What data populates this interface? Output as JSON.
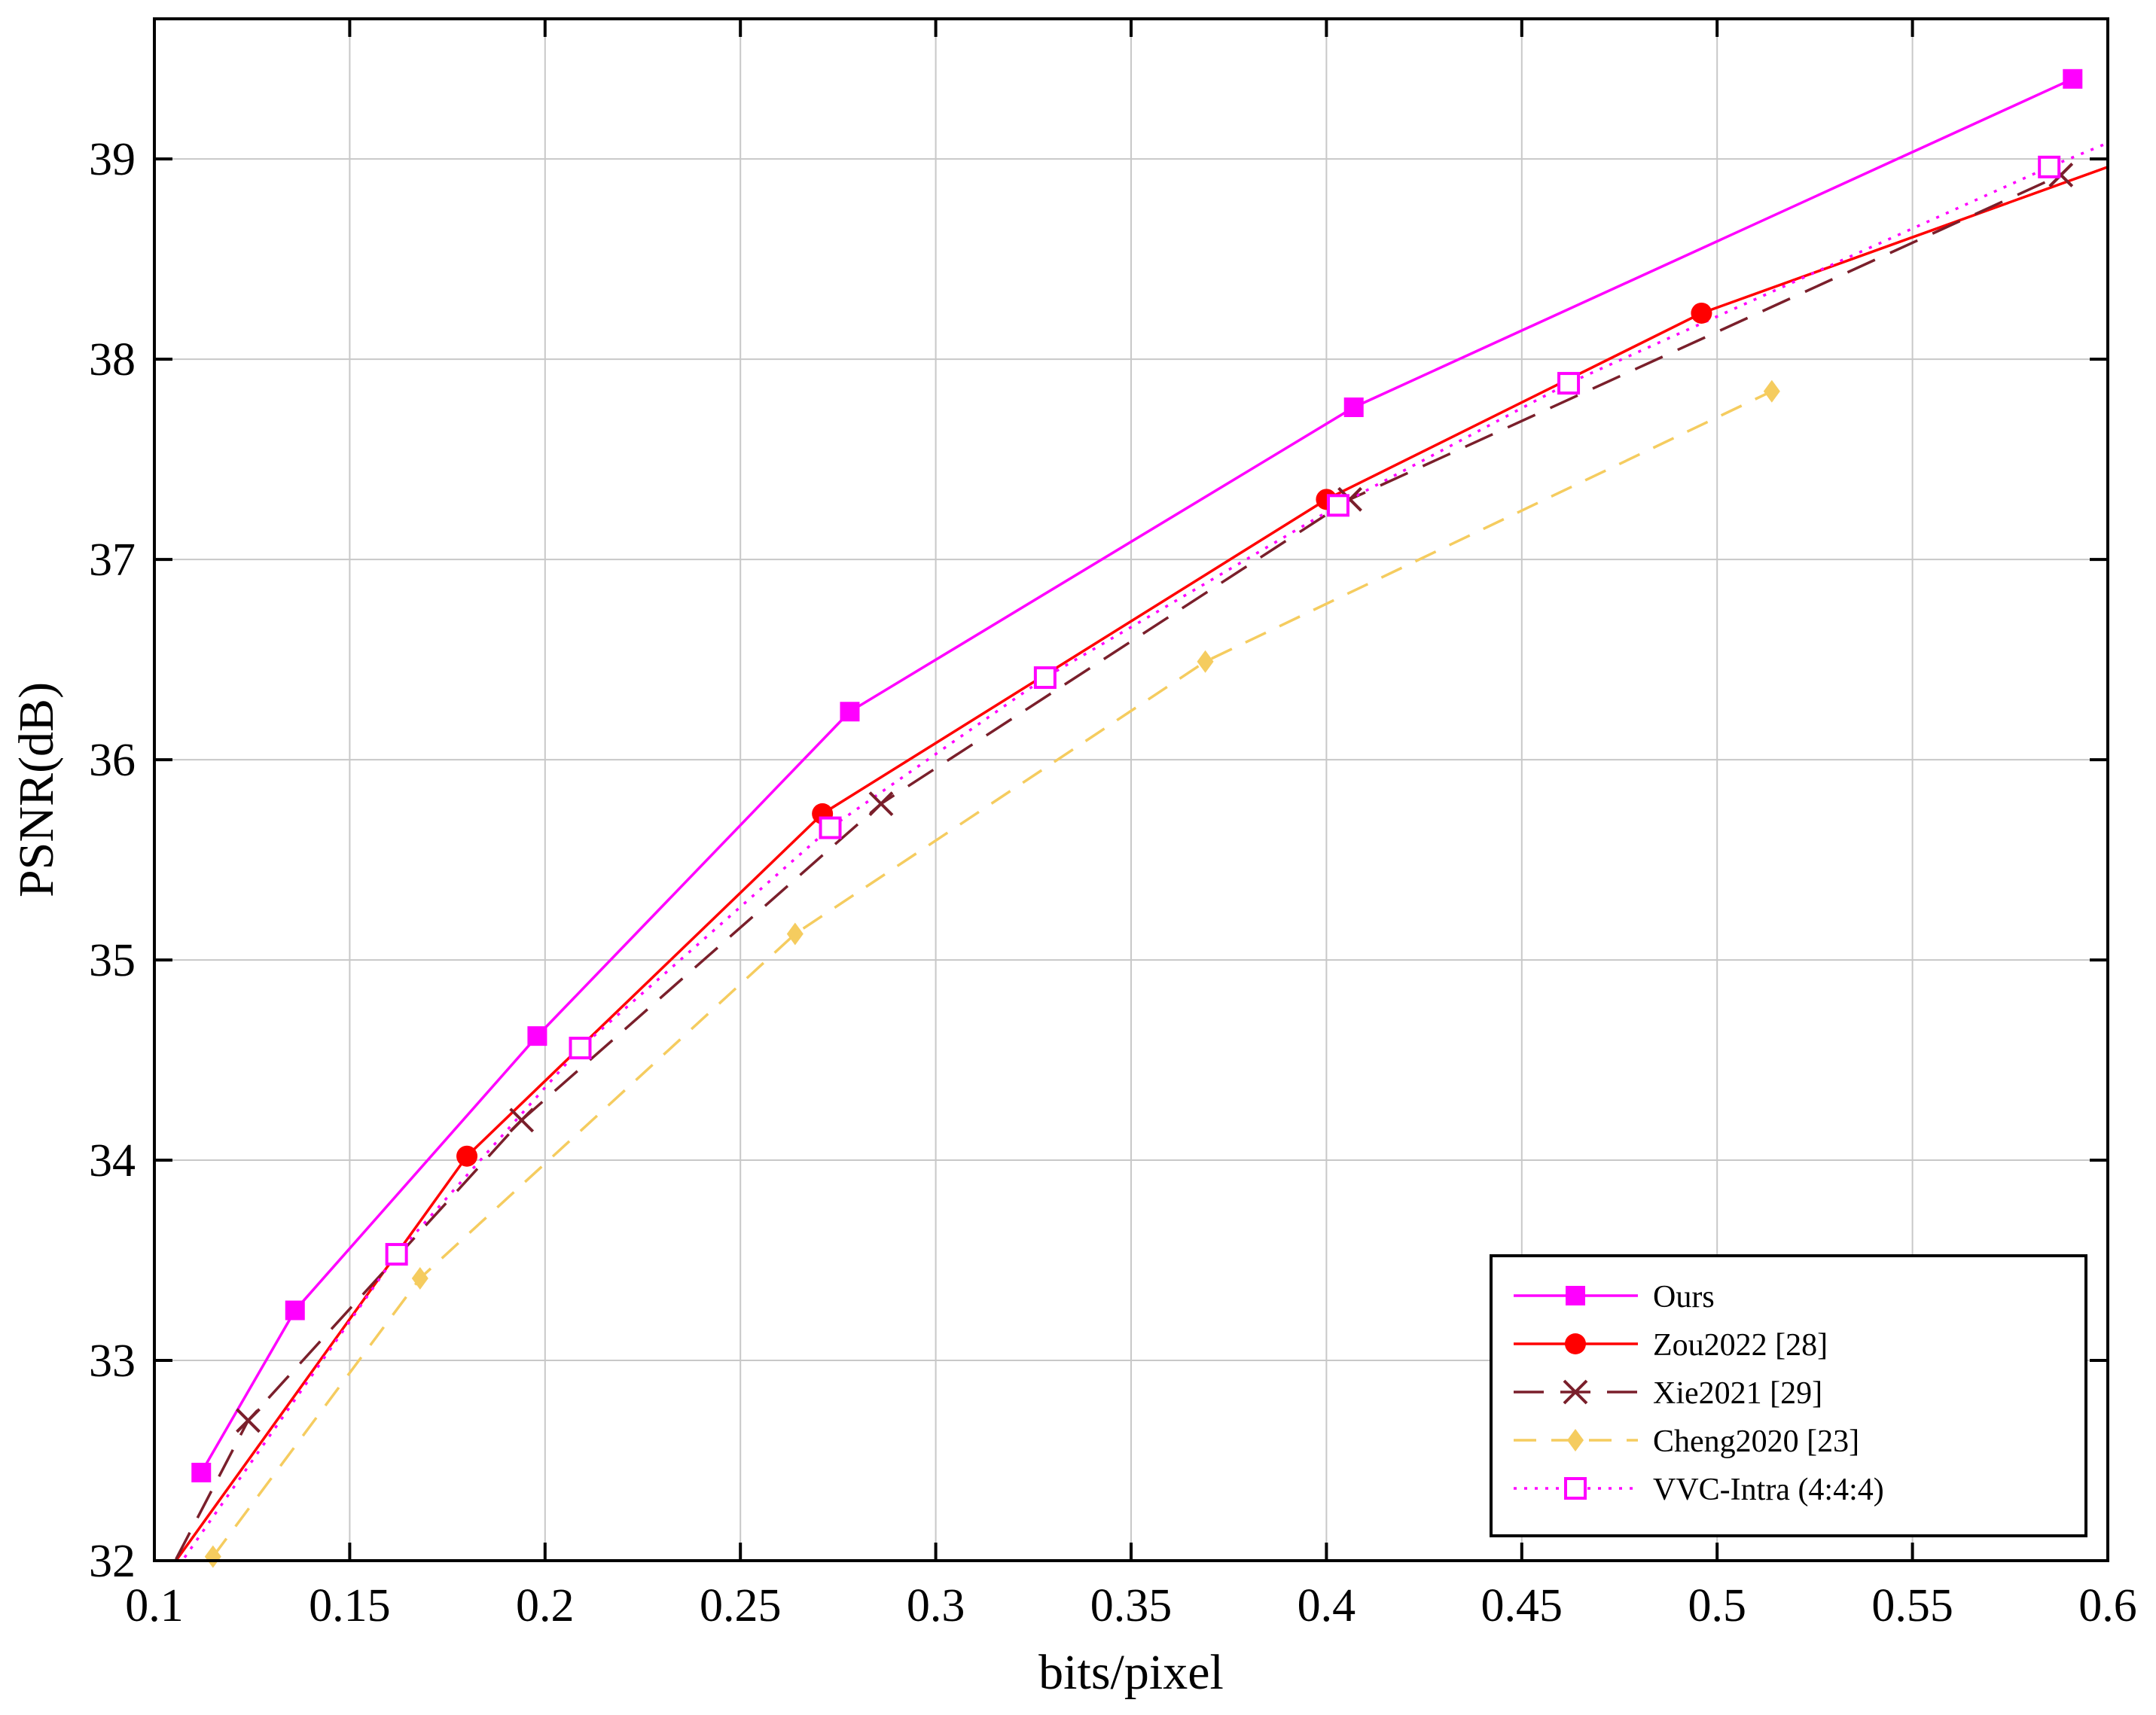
{
  "chart_data": {
    "type": "line",
    "xlabel": "bits/pixel",
    "ylabel": "PSNR(dB)",
    "xlim": [
      0.1,
      0.6
    ],
    "ylim": [
      32,
      39.7
    ],
    "xticks": [
      0.1,
      0.15,
      0.2,
      0.25,
      0.3,
      0.35,
      0.4,
      0.45,
      0.5,
      0.55,
      0.6
    ],
    "xtick_labels": [
      "0.1",
      "0.15",
      "0.2",
      "0.25",
      "0.3",
      "0.35",
      "0.4",
      "0.45",
      "0.5",
      "0.55",
      "0.6"
    ],
    "yticks": [
      32,
      33,
      34,
      35,
      36,
      37,
      38,
      39
    ],
    "ytick_labels": [
      "32",
      "33",
      "34",
      "35",
      "36",
      "37",
      "38",
      "39"
    ],
    "grid": true,
    "legend_position": "bottom-right",
    "series": [
      {
        "name": "Ours",
        "color": "#ff00ff",
        "dash": "solid",
        "marker": "filled-square",
        "x": [
          0.112,
          0.136,
          0.198,
          0.278,
          0.407,
          0.591
        ],
        "y": [
          32.44,
          33.25,
          34.62,
          36.24,
          37.76,
          39.4
        ],
        "marker_indices": [
          0,
          1,
          2,
          3,
          4,
          5
        ]
      },
      {
        "name": "Zou2022 [28]",
        "color": "#ff0000",
        "dash": "solid",
        "marker": "filled-circle",
        "x": [
          0.1,
          0.18,
          0.271,
          0.4,
          0.496,
          0.6
        ],
        "y": [
          31.85,
          34.02,
          35.73,
          37.3,
          38.23,
          38.96
        ],
        "marker_indices": [
          1,
          2,
          3,
          4
        ]
      },
      {
        "name": "Xie2021 [29]",
        "color": "#7a1f2b",
        "dash": "long-dash",
        "marker": "x",
        "x": [
          0.1,
          0.124,
          0.194,
          0.286,
          0.406,
          0.588
        ],
        "y": [
          31.8,
          32.7,
          34.2,
          35.78,
          37.3,
          38.92
        ],
        "marker_indices": [
          1,
          2,
          3,
          4,
          5
        ]
      },
      {
        "name": "Cheng2020 [23]",
        "color": "#f5cc5f",
        "dash": "dash",
        "marker": "filled-diamond",
        "x": [
          0.115,
          0.168,
          0.264,
          0.369,
          0.514
        ],
        "y": [
          32.02,
          33.41,
          35.13,
          36.49,
          37.84
        ],
        "marker_indices": [
          0,
          1,
          2,
          3,
          4
        ]
      },
      {
        "name": "VVC-Intra (4:4:4)",
        "color": "#ff00ff",
        "dash": "dot",
        "marker": "open-square",
        "x": [
          0.1,
          0.162,
          0.209,
          0.273,
          0.328,
          0.403,
          0.462,
          0.585,
          0.6
        ],
        "y": [
          31.8,
          33.53,
          34.56,
          35.66,
          36.41,
          37.27,
          37.88,
          38.96,
          39.08
        ],
        "marker_indices": [
          1,
          2,
          3,
          4,
          5,
          6,
          7
        ]
      }
    ]
  }
}
